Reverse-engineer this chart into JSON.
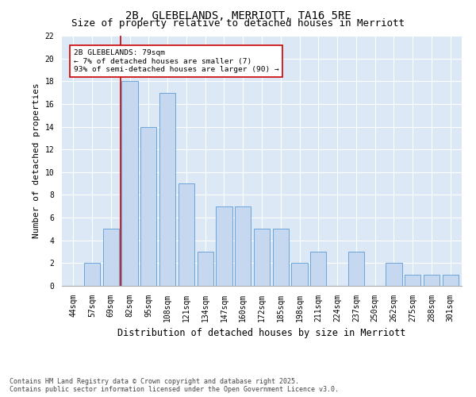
{
  "title1": "2B, GLEBELANDS, MERRIOTT, TA16 5RE",
  "title2": "Size of property relative to detached houses in Merriott",
  "xlabel": "Distribution of detached houses by size in Merriott",
  "ylabel": "Number of detached properties",
  "categories": [
    "44sqm",
    "57sqm",
    "69sqm",
    "82sqm",
    "95sqm",
    "108sqm",
    "121sqm",
    "134sqm",
    "147sqm",
    "160sqm",
    "172sqm",
    "185sqm",
    "198sqm",
    "211sqm",
    "224sqm",
    "237sqm",
    "250sqm",
    "262sqm",
    "275sqm",
    "288sqm",
    "301sqm"
  ],
  "values": [
    0,
    2,
    5,
    18,
    14,
    17,
    9,
    3,
    7,
    7,
    5,
    5,
    2,
    3,
    0,
    3,
    0,
    2,
    1,
    1,
    1
  ],
  "bar_color": "#c5d8f0",
  "bar_edge_color": "#5b9bd5",
  "vline_x_index": 3,
  "vline_color": "#cc0000",
  "annotation_text": "2B GLEBELANDS: 79sqm\n← 7% of detached houses are smaller (7)\n93% of semi-detached houses are larger (90) →",
  "annotation_box_color": "#ffffff",
  "annotation_box_edge": "#cc0000",
  "ylim": [
    0,
    22
  ],
  "yticks": [
    0,
    2,
    4,
    6,
    8,
    10,
    12,
    14,
    16,
    18,
    20,
    22
  ],
  "bg_color": "#dce8f5",
  "footer": "Contains HM Land Registry data © Crown copyright and database right 2025.\nContains public sector information licensed under the Open Government Licence v3.0.",
  "title_fontsize": 10,
  "subtitle_fontsize": 9,
  "tick_fontsize": 7,
  "ylabel_fontsize": 8,
  "xlabel_fontsize": 8.5,
  "footer_fontsize": 6,
  "footer_color": "#444444"
}
